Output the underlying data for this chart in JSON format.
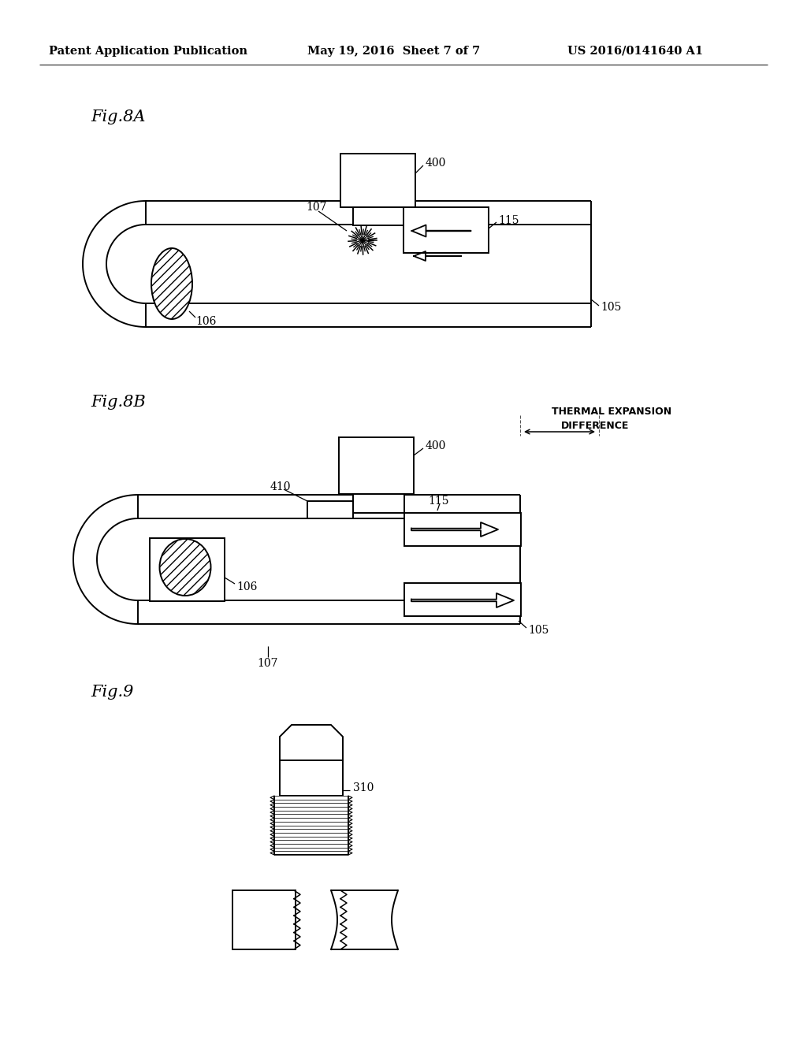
{
  "bg_color": "#ffffff",
  "header_left": "Patent Application Publication",
  "header_mid": "May 19, 2016  Sheet 7 of 7",
  "header_right": "US 2016/0141640 A1",
  "fig8A_label": "Fig.8A",
  "fig8B_label": "Fig.8B",
  "fig9_label": "Fig.9",
  "label_400_8A": "400",
  "label_115_8A": "115",
  "label_107_8A": "107",
  "label_106_8A": "106",
  "label_105_8A": "105",
  "label_410": "410",
  "label_400_8B": "400",
  "label_115_8B": "115",
  "label_106_8B": "106",
  "label_105_8B": "105",
  "label_107_8B": "107",
  "label_310": "310",
  "thermal_expansion_line1": "THERMAL EXPANSION",
  "thermal_expansion_line2": "DIFFERENCE"
}
